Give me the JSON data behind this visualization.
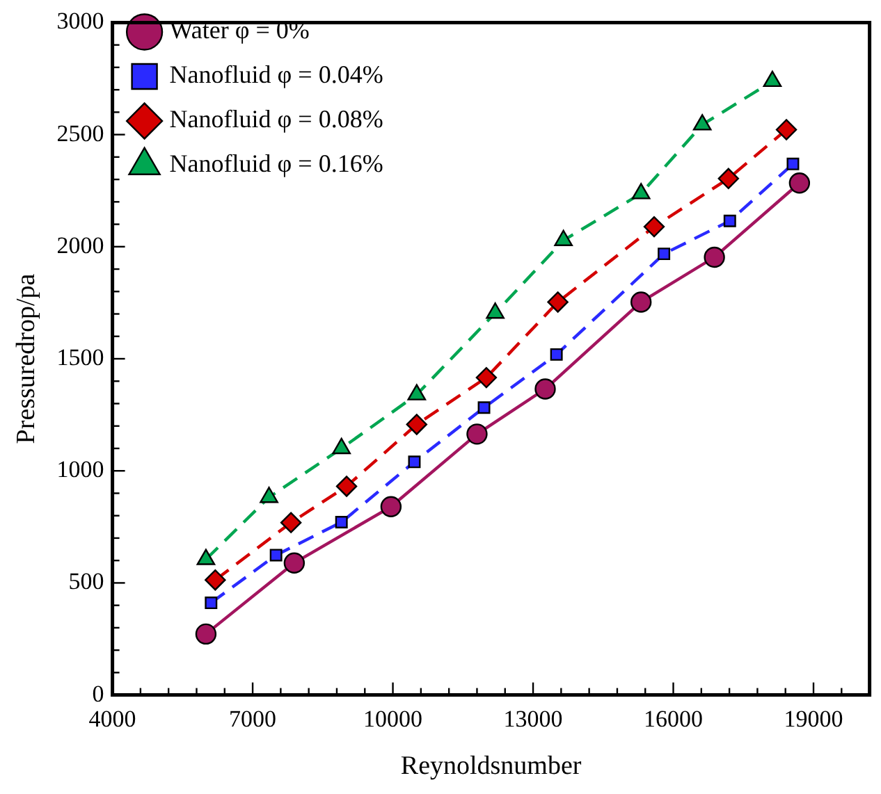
{
  "chart_data": {
    "type": "line",
    "xlabel": "Reynoldsnumber",
    "ylabel": "Pressuredrop/pa",
    "legend": "top left",
    "grid": false,
    "xlim": [
      4000,
      20200
    ],
    "xticks": [
      4000,
      {
        "value": 4600,
        "label": null
      },
      {
        "value": 5200,
        "label": null
      },
      {
        "value": 5800,
        "label": null
      },
      {
        "value": 6400,
        "label": null
      },
      7000,
      {
        "value": 7600,
        "label": null
      },
      {
        "value": 8200,
        "label": null
      },
      {
        "value": 8800,
        "label": null
      },
      {
        "value": 9400,
        "label": null
      },
      10000,
      {
        "value": 10600,
        "label": null
      },
      {
        "value": 11200,
        "label": null
      },
      {
        "value": 11800,
        "label": null
      },
      {
        "value": 12400,
        "label": null
      },
      13000,
      {
        "value": 13600,
        "label": null
      },
      {
        "value": 14200,
        "label": null
      },
      {
        "value": 14800,
        "label": null
      },
      {
        "value": 15400,
        "label": null
      },
      16000,
      {
        "value": 16600,
        "label": null
      },
      {
        "value": 17200,
        "label": null
      },
      {
        "value": 17800,
        "label": null
      },
      {
        "value": 18400,
        "label": null
      },
      19000,
      {
        "value": 19600,
        "label": null
      }
    ],
    "ylim": [
      0,
      3000
    ],
    "yticks": [
      0,
      {
        "value": 100,
        "label": null
      },
      {
        "value": 200,
        "label": null
      },
      {
        "value": 300,
        "label": null
      },
      {
        "value": 400,
        "label": null
      },
      500,
      {
        "value": 600,
        "label": null
      },
      {
        "value": 700,
        "label": null
      },
      {
        "value": 800,
        "label": null
      },
      {
        "value": 900,
        "label": null
      },
      1000,
      {
        "value": 1100,
        "label": null
      },
      {
        "value": 1200,
        "label": null
      },
      {
        "value": 1300,
        "label": null
      },
      {
        "value": 1400,
        "label": null
      },
      1500,
      {
        "value": 1600,
        "label": null
      },
      {
        "value": 1700,
        "label": null
      },
      {
        "value": 1800,
        "label": null
      },
      {
        "value": 1900,
        "label": null
      },
      2000,
      {
        "value": 2100,
        "label": null
      },
      {
        "value": 2200,
        "label": null
      },
      {
        "value": 2300,
        "label": null
      },
      {
        "value": 2400,
        "label": null
      },
      2500,
      {
        "value": 2600,
        "label": null
      },
      {
        "value": 2700,
        "label": null
      },
      {
        "value": 2800,
        "label": null
      },
      {
        "value": 2900,
        "label": null
      },
      3000
    ],
    "series": [
      {
        "name": "Water φ = 0%",
        "color": "#a3155f",
        "marker": "circle",
        "line_style": "solid",
        "x": [
          6000,
          7890,
          9960,
          11800,
          13260,
          15310,
          16880,
          18700
        ],
        "values": [
          272,
          589,
          840,
          1164,
          1365,
          1753,
          1953,
          2284
        ]
      },
      {
        "name": "Nanofluid φ = 0.04%",
        "color": "#2a2aff",
        "marker": "square",
        "line_style": "dashed",
        "x": [
          6110,
          7500,
          8900,
          10460,
          11950,
          13500,
          15800,
          17210,
          18560
        ],
        "values": [
          411,
          624,
          771,
          1040,
          1282,
          1519,
          1968,
          2115,
          2369
        ]
      },
      {
        "name": "Nanofluid φ = 0.08%",
        "color": "#d40000",
        "marker": "diamond",
        "line_style": "dashed",
        "x": [
          6200,
          7820,
          9010,
          10510,
          12000,
          13530,
          15590,
          17180,
          18420
        ],
        "values": [
          513,
          769,
          931,
          1207,
          1416,
          1753,
          2089,
          2304,
          2522
        ]
      },
      {
        "name": "Nanofluid φ = 0.16%",
        "color": "#00a651",
        "marker": "triangle",
        "line_style": "dashed",
        "x": [
          6000,
          7350,
          8900,
          10510,
          12190,
          13650,
          15310,
          16620,
          18120
        ],
        "values": [
          605,
          882,
          1100,
          1340,
          1704,
          2028,
          2237,
          2544,
          2738
        ]
      }
    ]
  }
}
